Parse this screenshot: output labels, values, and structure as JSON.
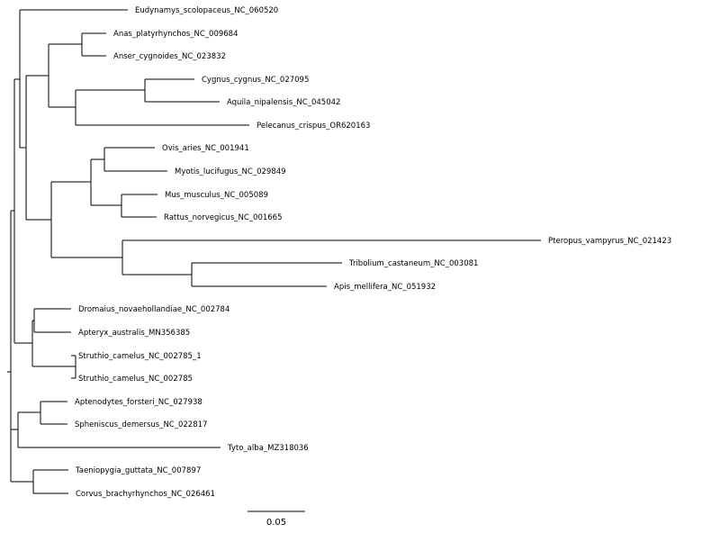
{
  "tree": {
    "taxa": [
      {
        "id": "t1",
        "label": "Eudynamys_scolopaceus_NC_060520"
      },
      {
        "id": "t2",
        "label": "Anas_platyrhynchos_NC_009684"
      },
      {
        "id": "t3",
        "label": "Anser_cygnoides_NC_023832"
      },
      {
        "id": "t4",
        "label": "Cygnus_cygnus_NC_027095"
      },
      {
        "id": "t5",
        "label": "Aquila_nipalensis_NC_045042"
      },
      {
        "id": "t6",
        "label": "Pelecanus_crispus_OR620163"
      },
      {
        "id": "t7",
        "label": "Ovis_aries_NC_001941"
      },
      {
        "id": "t8",
        "label": "Myotis_lucifugus_NC_029849"
      },
      {
        "id": "t9",
        "label": "Mus_musculus_NC_005089"
      },
      {
        "id": "t10",
        "label": "Rattus_norvegicus_NC_001665"
      },
      {
        "id": "t11",
        "label": "Pteropus_vampyrus_NC_021423"
      },
      {
        "id": "t12",
        "label": "Tribolium_castaneum_NC_003081"
      },
      {
        "id": "t13",
        "label": "Apis_mellifera_NC_051932"
      },
      {
        "id": "t14",
        "label": "Dromaius_novaehollandiae_NC_002784"
      },
      {
        "id": "t15",
        "label": "Apteryx_australis_MN356385"
      },
      {
        "id": "t16",
        "label": "Struthio_camelus_NC_002785_1"
      },
      {
        "id": "t17",
        "label": "Struthio_camelus_NC_002785"
      },
      {
        "id": "t18",
        "label": "Aptenodytes_forsteri_NC_027938"
      },
      {
        "id": "t19",
        "label": "Spheniscus_demersus_NC_022817"
      },
      {
        "id": "t20",
        "label": "Tyto_alba_MZ318036"
      },
      {
        "id": "t21",
        "label": "Taeniopygia_guttata_NC_007897"
      },
      {
        "id": "t22",
        "label": "Corvus_brachyrhynchos_NC_026461"
      }
    ],
    "scale_bar": {
      "label": "0.05",
      "value": 0.05
    }
  }
}
